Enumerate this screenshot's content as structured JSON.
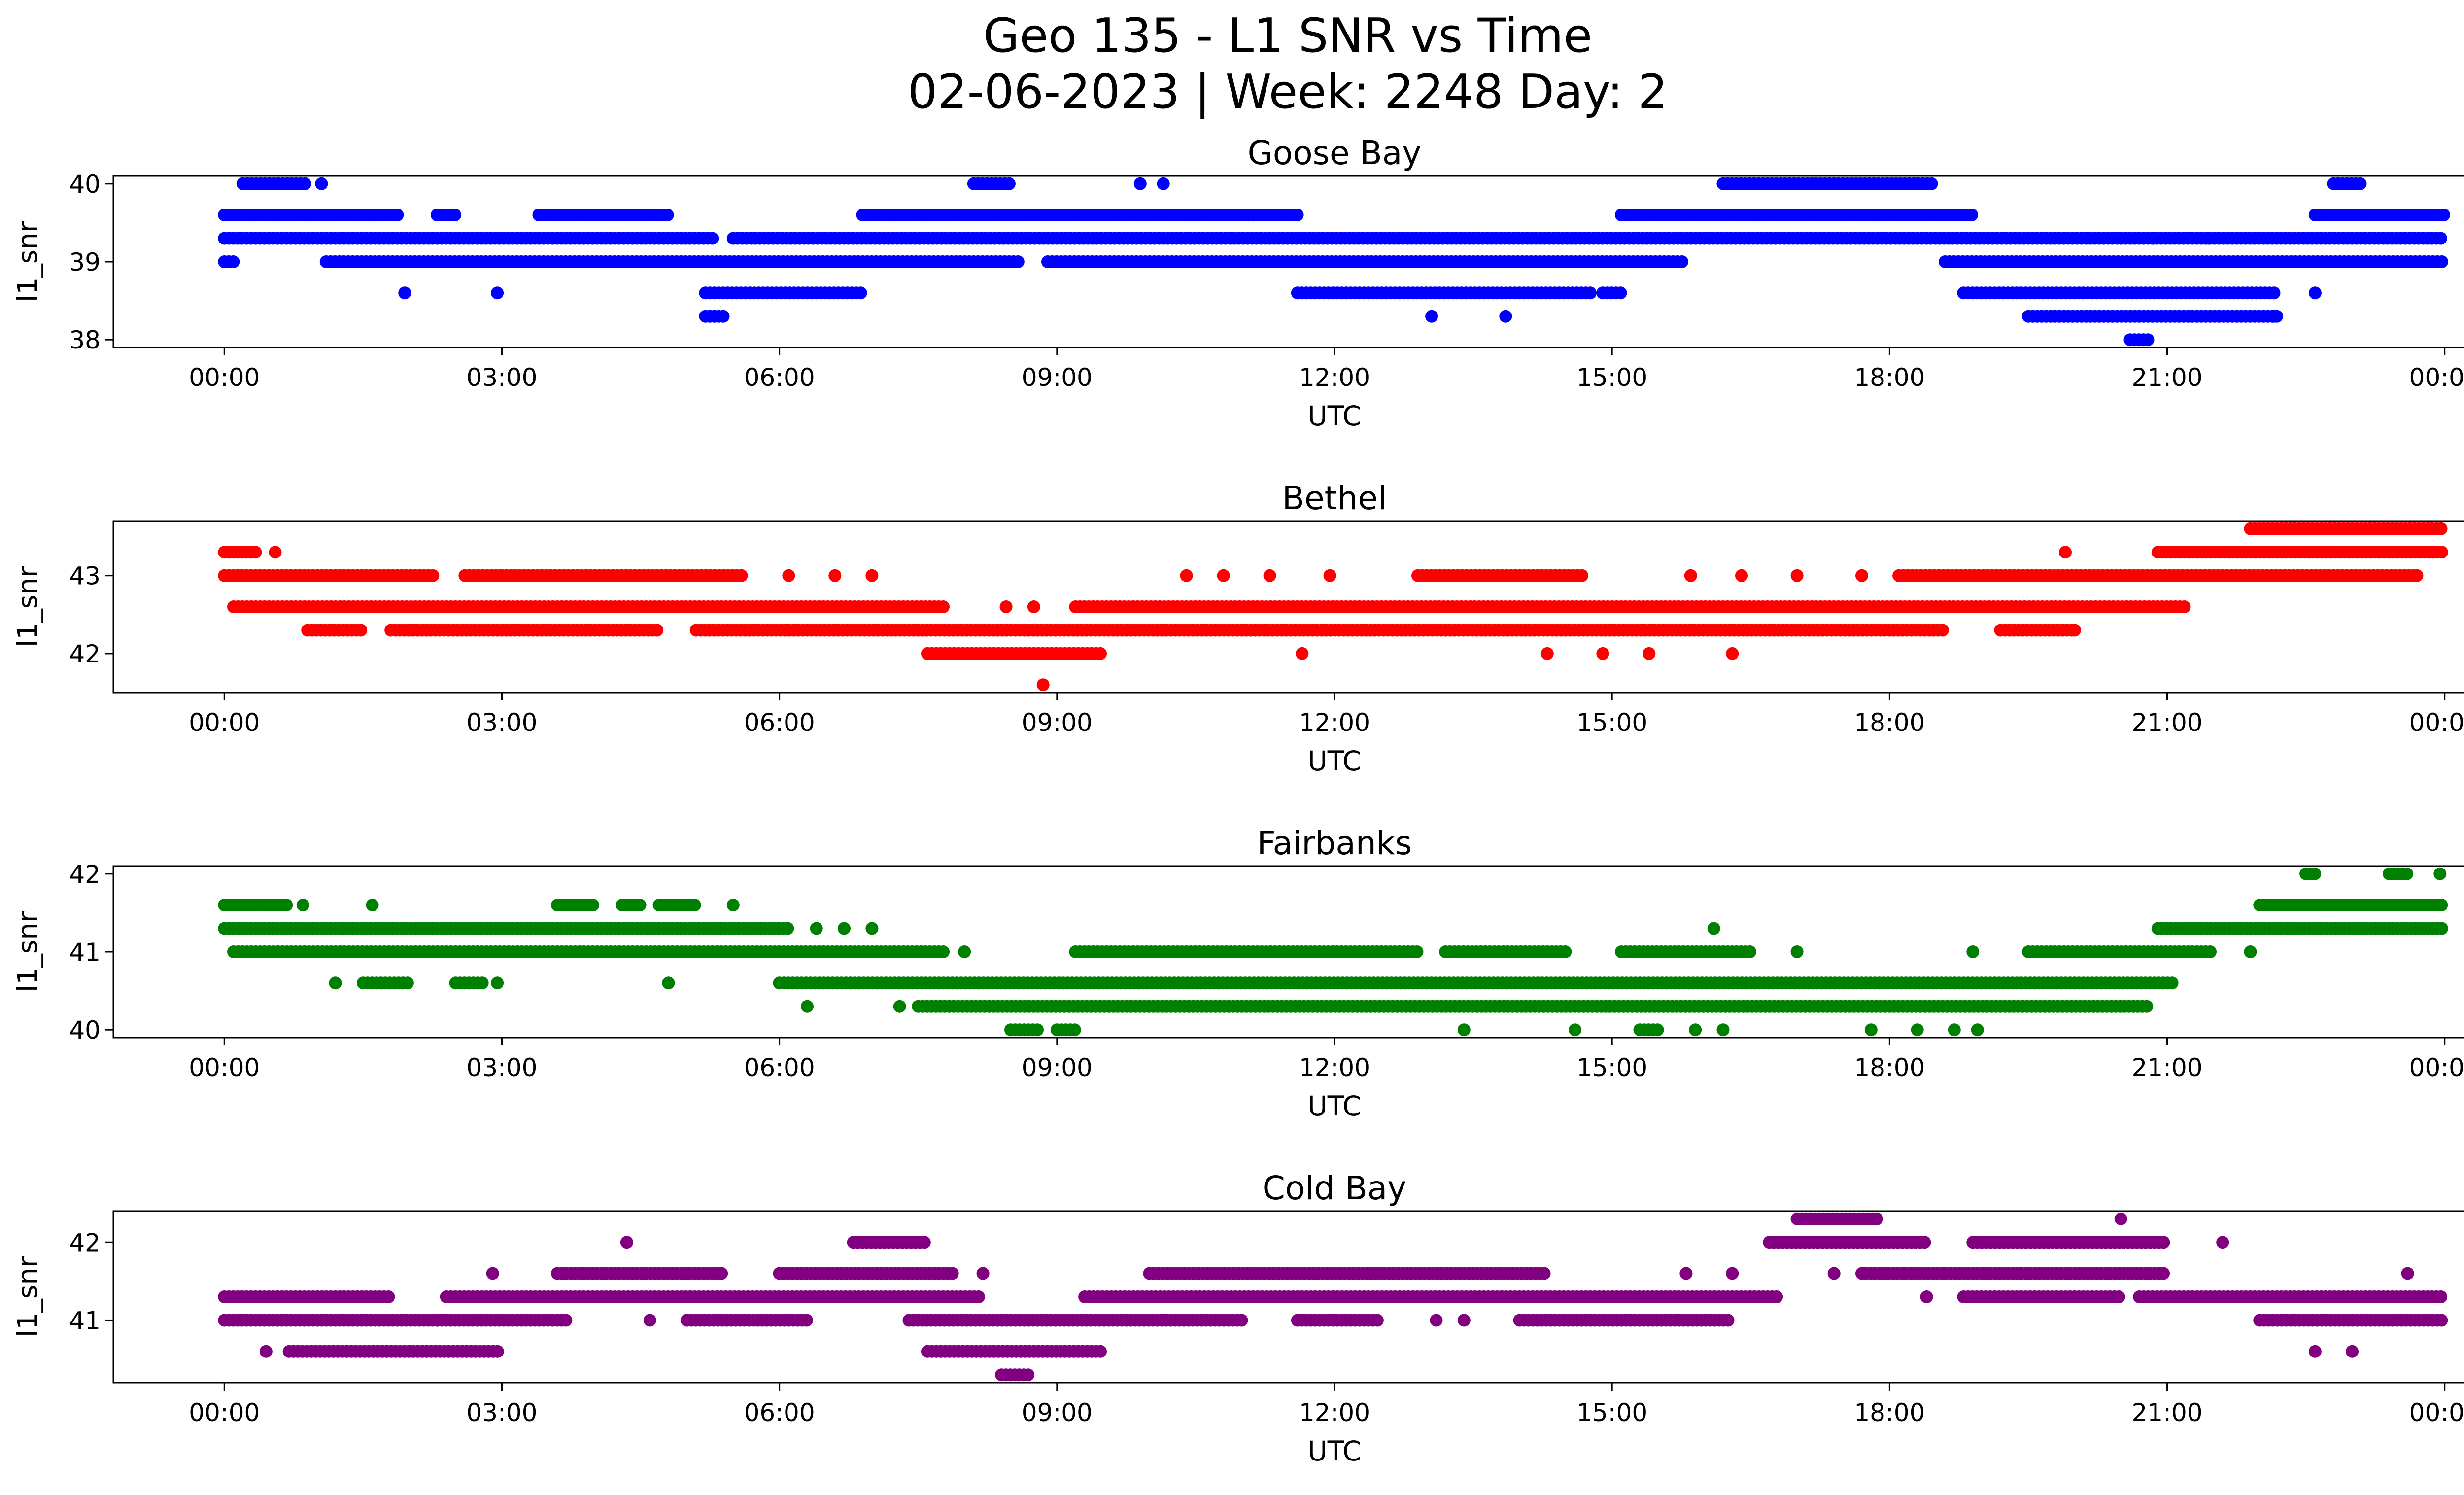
{
  "figure": {
    "title_line1": "Geo 135 - L1 SNR vs Time",
    "title_line2": "02-06-2023 | Week: 2248 Day: 2"
  },
  "chart_data": [
    {
      "type": "scatter",
      "title": "Goose Bay",
      "xlabel": "UTC",
      "ylabel": "l1_snr",
      "color": "#0000ff",
      "xlim_hours": [
        -1.2,
        25.2
      ],
      "ylim": [
        37.9,
        40.1
      ],
      "yticks": [
        "38",
        "39",
        "40"
      ],
      "xticks": [
        "00:00",
        "03:00",
        "06:00",
        "09:00",
        "12:00",
        "15:00",
        "18:00",
        "21:00",
        "00:00"
      ],
      "series": [
        {
          "bands": [
            {
              "y": 39.6,
              "segments": [
                [
                  0.0,
                  1.9
                ],
                [
                  2.3,
                  2.5
                ],
                [
                  3.4,
                  4.8
                ],
                [
                  6.9,
                  11.6
                ],
                [
                  15.1,
                  18.9
                ],
                [
                  22.6,
                  24.0
                ]
              ]
            },
            {
              "y": 39.3,
              "segments": [
                [
                  0.0,
                  5.3
                ],
                [
                  5.5,
                  24.0
                ]
              ]
            },
            {
              "y": 39.0,
              "segments": [
                [
                  0.0,
                  0.1
                ],
                [
                  1.1,
                  8.6
                ],
                [
                  8.9,
                  15.8
                ],
                [
                  18.6,
                  24.0
                ]
              ]
            },
            {
              "y": 40.0,
              "segments": [
                [
                  0.2,
                  0.9
                ],
                [
                  8.1,
                  8.5
                ],
                [
                  16.2,
                  18.5
                ],
                [
                  22.8,
                  23.1
                ]
              ]
            },
            {
              "y": 38.6,
              "segments": [
                [
                  5.2,
                  6.9
                ],
                [
                  11.6,
                  14.8
                ],
                [
                  14.9,
                  15.1
                ],
                [
                  18.8,
                  22.2
                ]
              ]
            },
            {
              "y": 38.3,
              "segments": [
                [
                  5.2,
                  5.4
                ],
                [
                  19.5,
                  22.2
                ]
              ]
            },
            {
              "y": 38.0,
              "segments": [
                [
                  20.6,
                  20.8
                ]
              ]
            }
          ],
          "points": [
            {
              "x": 1.05,
              "y": 40.0
            },
            {
              "x": 1.95,
              "y": 38.6
            },
            {
              "x": 2.95,
              "y": 38.6
            },
            {
              "x": 9.9,
              "y": 40.0
            },
            {
              "x": 10.15,
              "y": 40.0
            },
            {
              "x": 13.05,
              "y": 38.3
            },
            {
              "x": 13.85,
              "y": 38.3
            },
            {
              "x": 20.5,
              "y": 39.3
            },
            {
              "x": 20.85,
              "y": 39.3
            },
            {
              "x": 21.45,
              "y": 39.3
            },
            {
              "x": 22.15,
              "y": 38.3
            },
            {
              "x": 22.6,
              "y": 38.6
            }
          ]
        }
      ]
    },
    {
      "type": "scatter",
      "title": "Bethel",
      "xlabel": "UTC",
      "ylabel": "l1_snr",
      "color": "#ff0000",
      "xlim_hours": [
        -1.2,
        25.2
      ],
      "ylim": [
        41.5,
        43.7
      ],
      "yticks": [
        "42",
        "43"
      ],
      "xticks": [
        "00:00",
        "03:00",
        "06:00",
        "09:00",
        "12:00",
        "15:00",
        "18:00",
        "21:00",
        "00:00"
      ],
      "series": [
        {
          "bands": [
            {
              "y": 43.0,
              "segments": [
                [
                  0.0,
                  2.3
                ],
                [
                  2.6,
                  3.0
                ],
                [
                  3.0,
                  5.6
                ],
                [
                  12.9,
                  14.7
                ],
                [
                  18.1,
                  23.7
                ]
              ]
            },
            {
              "y": 42.6,
              "segments": [
                [
                  0.1,
                  7.8
                ],
                [
                  9.2,
                  21.2
                ]
              ]
            },
            {
              "y": 42.3,
              "segments": [
                [
                  0.9,
                  1.5
                ],
                [
                  1.8,
                  4.7
                ],
                [
                  5.1,
                  18.6
                ],
                [
                  19.2,
                  20.0
                ]
              ]
            },
            {
              "y": 43.3,
              "segments": [
                [
                  0.0,
                  0.35
                ],
                [
                  20.9,
                  24.0
                ]
              ]
            },
            {
              "y": 43.6,
              "segments": [
                [
                  21.9,
                  24.0
                ]
              ]
            },
            {
              "y": 42.0,
              "segments": [
                [
                  7.6,
                  9.5
                ]
              ]
            }
          ],
          "points": [
            {
              "x": 0.55,
              "y": 43.3
            },
            {
              "x": 6.1,
              "y": 43.0
            },
            {
              "x": 6.6,
              "y": 43.0
            },
            {
              "x": 7.0,
              "y": 43.0
            },
            {
              "x": 10.4,
              "y": 43.0
            },
            {
              "x": 10.8,
              "y": 43.0
            },
            {
              "x": 11.3,
              "y": 43.0
            },
            {
              "x": 11.95,
              "y": 43.0
            },
            {
              "x": 8.45,
              "y": 42.6
            },
            {
              "x": 8.75,
              "y": 42.6
            },
            {
              "x": 8.85,
              "y": 41.6
            },
            {
              "x": 11.65,
              "y": 42.0
            },
            {
              "x": 14.3,
              "y": 42.0
            },
            {
              "x": 14.9,
              "y": 42.0
            },
            {
              "x": 15.4,
              "y": 42.0
            },
            {
              "x": 16.3,
              "y": 42.0
            },
            {
              "x": 15.85,
              "y": 43.0
            },
            {
              "x": 16.4,
              "y": 43.0
            },
            {
              "x": 17.0,
              "y": 43.0
            },
            {
              "x": 17.7,
              "y": 43.0
            },
            {
              "x": 19.9,
              "y": 43.3
            },
            {
              "x": 20.0,
              "y": 42.3
            },
            {
              "x": 23.7,
              "y": 43.0
            }
          ]
        }
      ]
    },
    {
      "type": "scatter",
      "title": "Fairbanks",
      "xlabel": "UTC",
      "ylabel": "l1_snr",
      "color": "#008000",
      "xlim_hours": [
        -1.2,
        25.2
      ],
      "ylim": [
        39.9,
        42.1
      ],
      "yticks": [
        "40",
        "41",
        "42"
      ],
      "xticks": [
        "00:00",
        "03:00",
        "06:00",
        "09:00",
        "12:00",
        "15:00",
        "18:00",
        "21:00",
        "00:00"
      ],
      "series": [
        {
          "bands": [
            {
              "y": 41.6,
              "segments": [
                [
                  0.0,
                  0.7
                ],
                [
                  3.6,
                  4.0
                ],
                [
                  4.3,
                  4.5
                ],
                [
                  4.7,
                  5.1
                ],
                [
                  22.0,
                  24.0
                ]
              ]
            },
            {
              "y": 41.3,
              "segments": [
                [
                  0.0,
                  6.1
                ],
                [
                  20.9,
                  24.0
                ]
              ]
            },
            {
              "y": 41.0,
              "segments": [
                [
                  0.1,
                  7.8
                ],
                [
                  9.2,
                  12.9
                ],
                [
                  13.2,
                  14.5
                ],
                [
                  15.1,
                  16.5
                ],
                [
                  19.5,
                  21.5
                ]
              ]
            },
            {
              "y": 40.6,
              "segments": [
                [
                  1.5,
                  2.0
                ],
                [
                  2.5,
                  2.8
                ],
                [
                  6.0,
                  21.1
                ]
              ]
            },
            {
              "y": 40.3,
              "segments": [
                [
                  7.5,
                  20.8
                ]
              ]
            },
            {
              "y": 40.0,
              "segments": [
                [
                  8.5,
                  8.8
                ],
                [
                  9.0,
                  9.2
                ],
                [
                  15.3,
                  15.5
                ]
              ]
            },
            {
              "y": 42.0,
              "segments": [
                [
                  22.5,
                  22.6
                ],
                [
                  23.4,
                  23.6
                ]
              ]
            }
          ],
          "points": [
            {
              "x": 0.85,
              "y": 41.6
            },
            {
              "x": 1.6,
              "y": 41.6
            },
            {
              "x": 5.5,
              "y": 41.6
            },
            {
              "x": 6.4,
              "y": 41.3
            },
            {
              "x": 6.7,
              "y": 41.3
            },
            {
              "x": 7.0,
              "y": 41.3
            },
            {
              "x": 16.1,
              "y": 41.3
            },
            {
              "x": 1.2,
              "y": 40.6
            },
            {
              "x": 2.95,
              "y": 40.6
            },
            {
              "x": 4.8,
              "y": 40.6
            },
            {
              "x": 6.3,
              "y": 40.3
            },
            {
              "x": 7.3,
              "y": 40.3
            },
            {
              "x": 8.0,
              "y": 41.0
            },
            {
              "x": 17.0,
              "y": 41.0
            },
            {
              "x": 18.9,
              "y": 41.0
            },
            {
              "x": 21.9,
              "y": 41.0
            },
            {
              "x": 13.4,
              "y": 40.0
            },
            {
              "x": 14.6,
              "y": 40.0
            },
            {
              "x": 15.9,
              "y": 40.0
            },
            {
              "x": 16.2,
              "y": 40.0
            },
            {
              "x": 17.8,
              "y": 40.0
            },
            {
              "x": 18.3,
              "y": 40.0
            },
            {
              "x": 18.7,
              "y": 40.0
            },
            {
              "x": 18.95,
              "y": 40.0
            },
            {
              "x": 23.95,
              "y": 42.0
            }
          ]
        }
      ]
    },
    {
      "type": "scatter",
      "title": "Cold Bay",
      "xlabel": "UTC",
      "ylabel": "l1_snr",
      "color": "#800080",
      "xlim_hours": [
        -1.2,
        25.2
      ],
      "ylim": [
        40.2,
        42.4
      ],
      "yticks": [
        "41",
        "42"
      ],
      "xticks": [
        "00:00",
        "03:00",
        "06:00",
        "09:00",
        "12:00",
        "15:00",
        "18:00",
        "21:00",
        "00:00"
      ],
      "series": [
        {
          "bands": [
            {
              "y": 41.3,
              "segments": [
                [
                  0.0,
                  1.8
                ],
                [
                  2.4,
                  8.2
                ],
                [
                  9.3,
                  16.8
                ],
                [
                  18.8,
                  20.5
                ],
                [
                  20.7,
                  24.0
                ]
              ]
            },
            {
              "y": 41.0,
              "segments": [
                [
                  0.0,
                  3.7
                ],
                [
                  5.0,
                  6.3
                ],
                [
                  7.4,
                  11.0
                ],
                [
                  11.6,
                  12.5
                ],
                [
                  14.0,
                  16.3
                ],
                [
                  22.0,
                  24.0
                ]
              ]
            },
            {
              "y": 40.6,
              "segments": [
                [
                  0.7,
                  3.0
                ],
                [
                  7.6,
                  9.5
                ]
              ]
            },
            {
              "y": 41.6,
              "segments": [
                [
                  3.6,
                  5.4
                ],
                [
                  6.0,
                  7.9
                ],
                [
                  10.0,
                  14.3
                ],
                [
                  17.7,
                  21.0
                ]
              ]
            },
            {
              "y": 42.0,
              "segments": [
                [
                  6.8,
                  7.6
                ],
                [
                  16.7,
                  18.4
                ],
                [
                  18.9,
                  21.0
                ]
              ]
            },
            {
              "y": 42.3,
              "segments": [
                [
                  17.0,
                  17.9
                ]
              ]
            },
            {
              "y": 40.3,
              "segments": [
                [
                  8.4,
                  8.7
                ]
              ]
            }
          ],
          "points": [
            {
              "x": 0.45,
              "y": 40.6
            },
            {
              "x": 2.3,
              "y": 41.0
            },
            {
              "x": 4.35,
              "y": 42.0
            },
            {
              "x": 4.6,
              "y": 41.0
            },
            {
              "x": 2.9,
              "y": 41.6
            },
            {
              "x": 8.2,
              "y": 41.6
            },
            {
              "x": 13.1,
              "y": 41.0
            },
            {
              "x": 13.4,
              "y": 41.0
            },
            {
              "x": 15.8,
              "y": 41.6
            },
            {
              "x": 16.3,
              "y": 41.6
            },
            {
              "x": 18.4,
              "y": 41.3
            },
            {
              "x": 21.6,
              "y": 42.0
            },
            {
              "x": 20.5,
              "y": 42.3
            },
            {
              "x": 22.6,
              "y": 40.6
            },
            {
              "x": 23.0,
              "y": 40.6
            },
            {
              "x": 23.6,
              "y": 41.6
            },
            {
              "x": 17.4,
              "y": 41.6
            }
          ]
        }
      ]
    }
  ]
}
